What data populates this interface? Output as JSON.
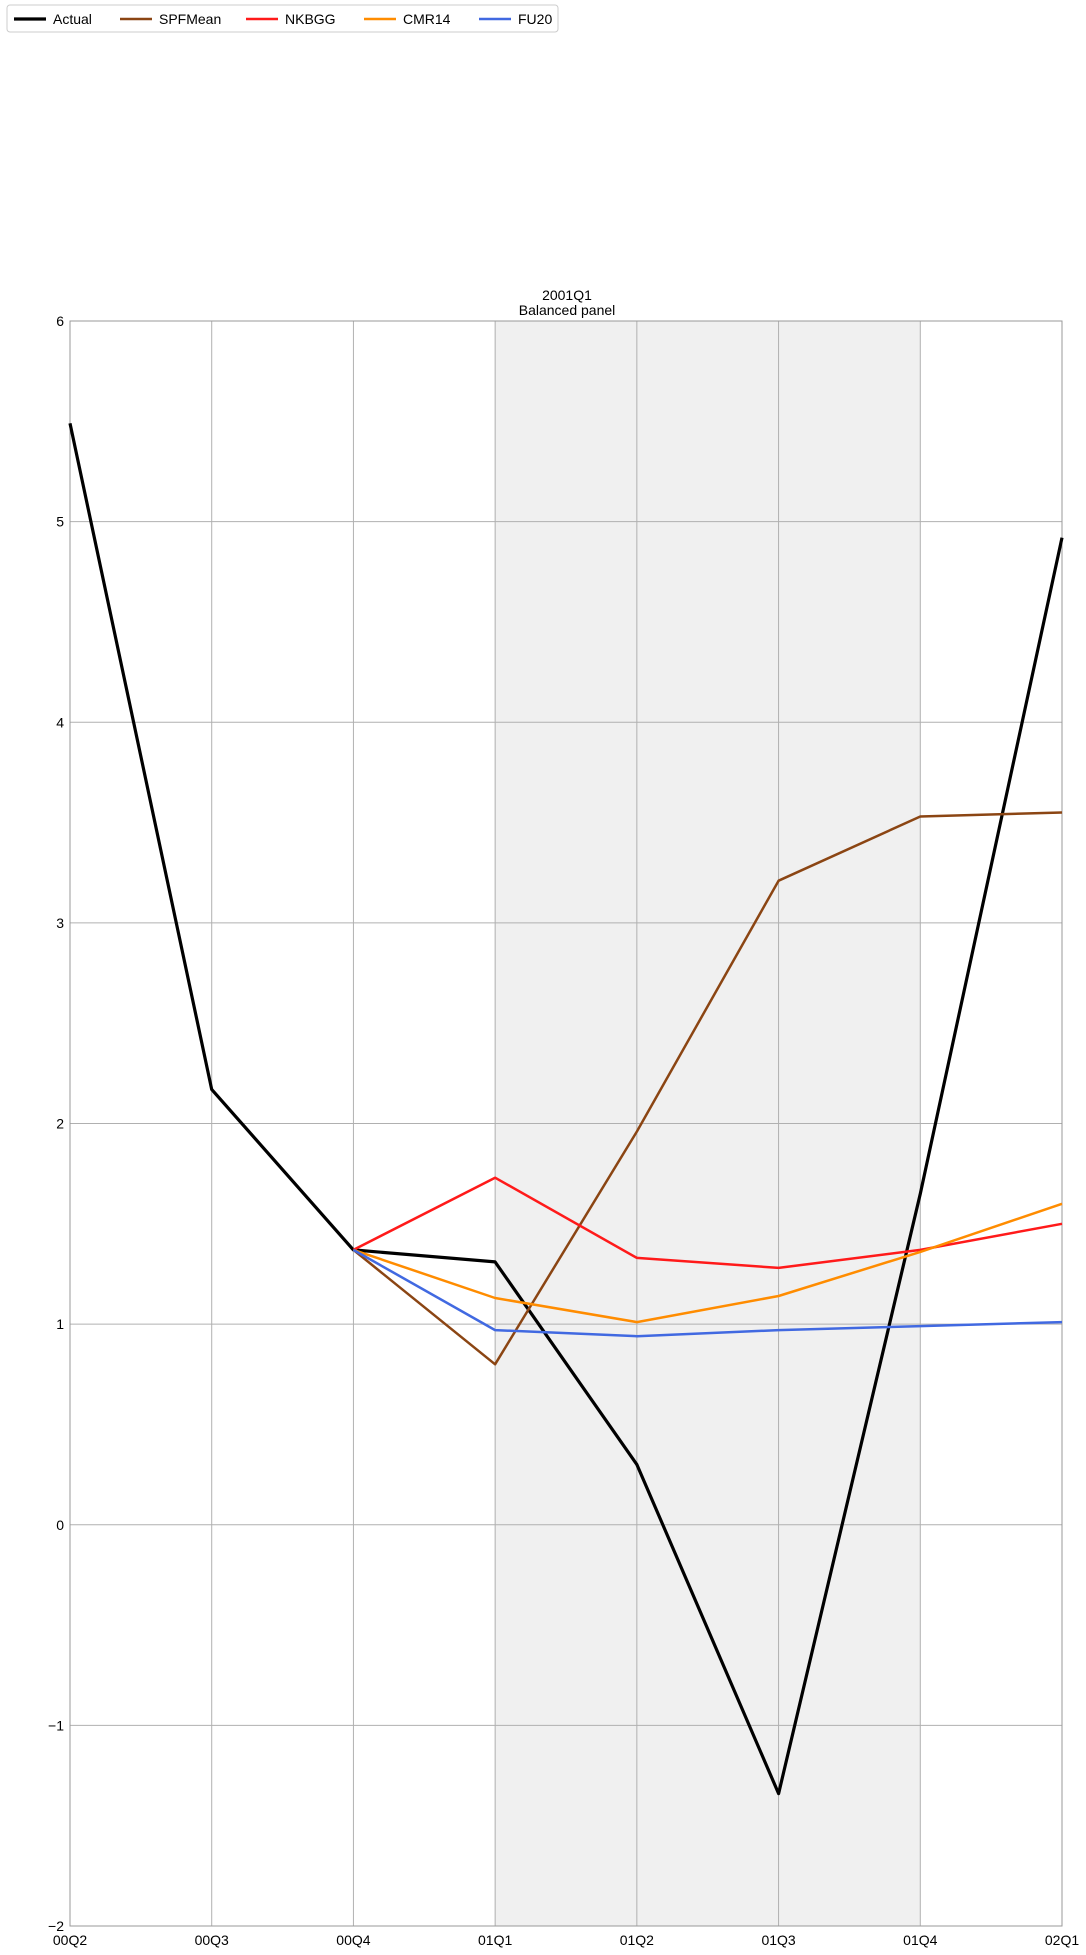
{
  "chart_data": {
    "type": "line",
    "title": "2001Q1",
    "subtitle": "Balanced panel",
    "xlabel": "",
    "ylabel": "",
    "categories": [
      "00Q2",
      "00Q3",
      "00Q4",
      "01Q1",
      "01Q2",
      "01Q3",
      "01Q4",
      "02Q1"
    ],
    "ylim": [
      -2,
      6
    ],
    "yticks": [
      "−2",
      "−1",
      "0",
      "1",
      "2",
      "3",
      "4",
      "5",
      "6"
    ],
    "ytick_values": [
      -2,
      -1,
      0,
      1,
      2,
      3,
      4,
      5,
      6
    ],
    "grid": true,
    "shaded_region": {
      "from": "01Q1",
      "to": "01Q4",
      "color": "#f0f0f0"
    },
    "legend_position": "top-left",
    "series": [
      {
        "name": "Actual",
        "color": "#000000",
        "values": [
          5.49,
          2.17,
          1.37,
          1.31,
          0.3,
          -1.34,
          1.65,
          4.92
        ]
      },
      {
        "name": "SPFMean",
        "color": "#8b4513",
        "values": [
          null,
          null,
          1.37,
          0.8,
          1.96,
          3.21,
          3.53,
          3.55
        ]
      },
      {
        "name": "NKBGG",
        "color": "#ff1a1a",
        "values": [
          null,
          null,
          1.37,
          1.73,
          1.33,
          1.28,
          1.37,
          1.5
        ]
      },
      {
        "name": "CMR14",
        "color": "#ff8c00",
        "values": [
          null,
          null,
          1.37,
          1.13,
          1.01,
          1.14,
          1.36,
          1.6
        ]
      },
      {
        "name": "FU20",
        "color": "#4169e1",
        "values": [
          null,
          null,
          1.37,
          0.97,
          0.94,
          0.97,
          0.99,
          1.01
        ]
      }
    ]
  }
}
